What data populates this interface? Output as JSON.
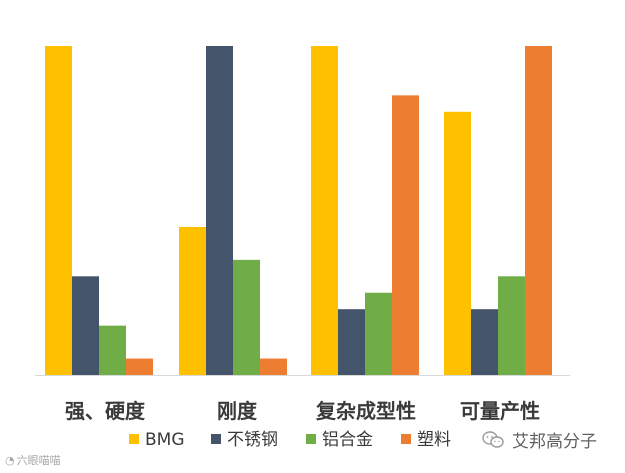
{
  "chart_data": {
    "type": "bar",
    "categories": [
      "强、硬度",
      "刚度",
      "复杂成型性",
      "可量产性"
    ],
    "series": [
      {
        "name": "BMG",
        "color": "#FFC000",
        "values": [
          100,
          45,
          100,
          80
        ]
      },
      {
        "name": "不锈钢",
        "color": "#44546A",
        "values": [
          30,
          100,
          20,
          20
        ]
      },
      {
        "name": "铝合金",
        "color": "#70AD47",
        "values": [
          15,
          35,
          25,
          30
        ]
      },
      {
        "name": "塑料",
        "color": "#ED7D31",
        "values": [
          5,
          5,
          85,
          100
        ]
      }
    ],
    "ylim": [
      0,
      100
    ],
    "grid": false,
    "legend_position": "bottom"
  },
  "watermark": {
    "left_text": "六眼喵喵",
    "right_text": "艾邦高分子"
  }
}
